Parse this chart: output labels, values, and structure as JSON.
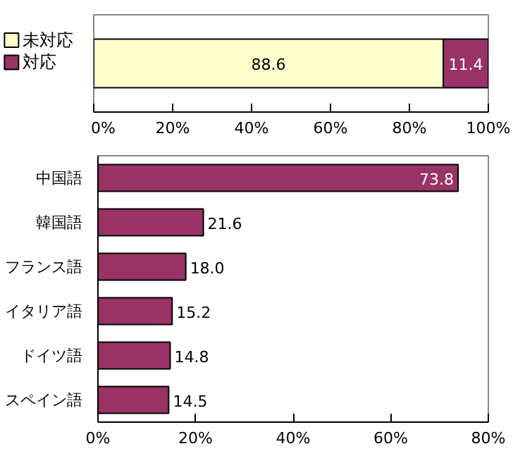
{
  "chart_data": [
    {
      "type": "bar",
      "orientation": "horizontal",
      "stacked": true,
      "categories": [
        null
      ],
      "series": [
        {
          "name": "未対応",
          "color": "#ffffcc",
          "values": [
            88.6
          ]
        },
        {
          "name": "対応",
          "color": "#993366",
          "values": [
            11.4
          ]
        }
      ],
      "xlim": [
        0,
        100
      ],
      "xticks": [
        {
          "value": 0,
          "label": "0%"
        },
        {
          "value": 20,
          "label": "20%"
        },
        {
          "value": 40,
          "label": "40%"
        },
        {
          "value": 60,
          "label": "60%"
        },
        {
          "value": 80,
          "label": "80%"
        },
        {
          "value": 100,
          "label": "100%"
        }
      ],
      "data_labels": true,
      "legend": "left",
      "grid": false
    },
    {
      "type": "bar",
      "orientation": "horizontal",
      "categories": [
        "中国語",
        "韓国語",
        "フランス語",
        "イタリア語",
        "ドイツ語",
        "スペイン語"
      ],
      "series": [
        {
          "color": "#993366",
          "values": [
            73.8,
            21.6,
            18.0,
            15.2,
            14.8,
            14.5
          ]
        }
      ],
      "value_labels": [
        "73.8",
        "21.6",
        "18.0",
        "15.2",
        "14.8",
        "14.5"
      ],
      "xlim": [
        0,
        80
      ],
      "xticks": [
        {
          "value": 0,
          "label": "0%"
        },
        {
          "value": 20,
          "label": "20%"
        },
        {
          "value": 40,
          "label": "40%"
        },
        {
          "value": 60,
          "label": "60%"
        },
        {
          "value": 80,
          "label": "80%"
        }
      ],
      "legend": false,
      "grid": false
    }
  ]
}
